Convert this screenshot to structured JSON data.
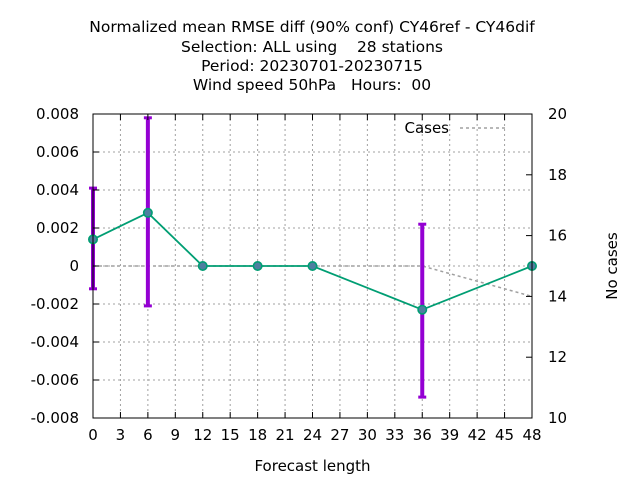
{
  "chart_data": {
    "type": "line",
    "title_lines": [
      "Normalized mean RMSE diff (90% conf) CY46ref - CY46dif",
      "Selection: ALL using    28 stations",
      "Period: 20230701-20230715",
      "Wind speed 50hPa   Hours:  00"
    ],
    "xlabel": "Forecast length",
    "ylabel": "",
    "y2label": "No cases",
    "xlim": [
      0,
      48
    ],
    "ylim": [
      -0.008,
      0.008
    ],
    "y2lim": [
      10,
      20
    ],
    "x_ticks": [
      0,
      3,
      6,
      9,
      12,
      15,
      18,
      21,
      24,
      27,
      30,
      33,
      36,
      39,
      42,
      45,
      48
    ],
    "y_ticks": [
      -0.008,
      -0.006,
      -0.004,
      -0.002,
      0,
      0.002,
      0.004,
      0.006,
      0.008
    ],
    "y_tick_labels": [
      "-0.008",
      "-0.006",
      "-0.004",
      "-0.002",
      "0",
      "0.002",
      "0.004",
      "0.006",
      "0.008"
    ],
    "y2_ticks": [
      10,
      12,
      14,
      16,
      18,
      20
    ],
    "grid": true,
    "legend_position": "top-right",
    "series": [
      {
        "x": [
          0,
          6,
          12,
          18,
          24,
          36,
          48
        ],
        "y": [
          0.0014,
          0.0028,
          0,
          0,
          0,
          -0.0023,
          0
        ],
        "color": "#009e73",
        "marker_color": "#4f7fa0",
        "axis": "left"
      },
      {
        "name": "Cases",
        "x": [
          0,
          6,
          12,
          18,
          24,
          36,
          48
        ],
        "y": [
          15,
          15,
          15,
          15,
          15,
          15,
          14
        ],
        "color": "#a0a0a0",
        "axis": "right",
        "style": "dashed"
      }
    ],
    "error_bars": {
      "x": [
        0,
        6,
        36
      ],
      "low": [
        -0.0012,
        -0.0021,
        -0.0069
      ],
      "high": [
        0.0041,
        0.0078,
        0.0022
      ],
      "color": "#9400d3"
    }
  }
}
